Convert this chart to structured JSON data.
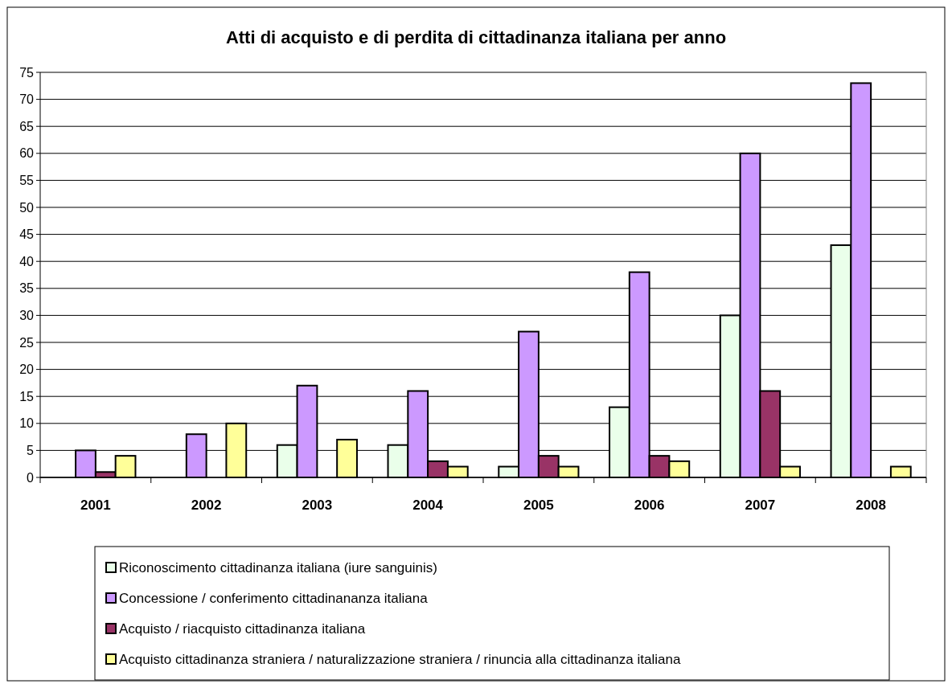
{
  "chart_data": {
    "type": "bar",
    "title": "Atti di acquisto e di perdita di cittadinanza italiana per anno",
    "categories": [
      "2001",
      "2002",
      "2003",
      "2004",
      "2005",
      "2006",
      "2007",
      "2008"
    ],
    "series": [
      {
        "name": "Riconoscimento cittadinanza italiana (iure sanguinis)",
        "color": "#eaffea",
        "values": [
          null,
          null,
          6,
          6,
          2,
          13,
          30,
          43
        ]
      },
      {
        "name": "Concessione / conferimento cittadinananza italiana",
        "color": "#cc99ff",
        "values": [
          5,
          8,
          17,
          16,
          27,
          38,
          60,
          73
        ]
      },
      {
        "name": "Acquisto / riacquisto cittadinanza italiana",
        "color": "#993366",
        "values": [
          1,
          null,
          null,
          3,
          4,
          4,
          16,
          null
        ]
      },
      {
        "name": "Acquisto cittadinanza straniera / naturalizzazione straniera / rinuncia alla cittadinanza italiana",
        "color": "#ffff99",
        "values": [
          4,
          10,
          7,
          2,
          2,
          3,
          2,
          2
        ]
      }
    ],
    "ylim": [
      0,
      75
    ],
    "yticks": [
      0,
      5,
      10,
      15,
      20,
      25,
      30,
      35,
      40,
      45,
      50,
      55,
      60,
      65,
      70,
      75
    ],
    "grid": "y",
    "legend": "bottom"
  }
}
